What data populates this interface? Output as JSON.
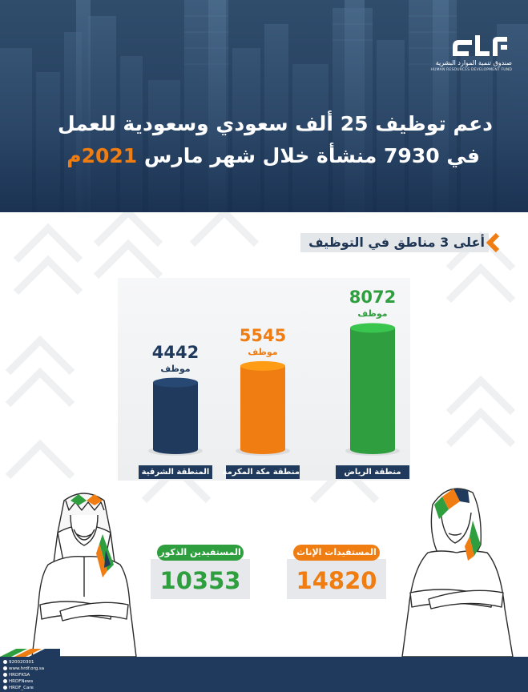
{
  "header": {
    "logo": {
      "mark_text": "هدف",
      "name": "صندوق تنمية الموارد البشرية",
      "subtitle": "HUMAN RESOURCES DEVELOPMENT FUND"
    },
    "title_line1": "دعم توظيف 25 ألف سعودي وسعودية للعمل",
    "title_line2_prefix": "في 7930 منشأة خلال شهر مارس ",
    "title_line2_highlight": "2021م"
  },
  "section": {
    "heading": "أعلى 3 مناطق في التوظيف"
  },
  "chart_data": {
    "type": "bar",
    "categories": [
      "منطقة الرياض",
      "منطقة مكة المكرمة",
      "المنطقة الشرقية"
    ],
    "values": [
      8072,
      5545,
      4442
    ],
    "unit": "موظف",
    "colors": [
      "#2e9e3e",
      "#ef7d12",
      "#1f3a5c"
    ],
    "ylim": [
      0,
      9000
    ]
  },
  "stats": {
    "males": {
      "label": "المستفيدين الذكور",
      "value": "10353",
      "color": "#2e9e3e"
    },
    "females": {
      "label": "المستفيدات الإناث",
      "value": "14820",
      "color": "#ef7d12"
    }
  },
  "footer": {
    "contacts": [
      {
        "icon": "whatsapp-icon",
        "text": "920020301"
      },
      {
        "icon": "globe-icon",
        "text": "www.hrdf.org.sa"
      },
      {
        "icon": "twitter-icon",
        "text": "HRDFKSA"
      },
      {
        "icon": "twitter-icon",
        "text": "HRDFNews"
      },
      {
        "icon": "twitter-icon",
        "text": "HRDF_Care"
      }
    ]
  },
  "colors": {
    "navy": "#1f3a5c",
    "orange": "#ef7d12",
    "green": "#2e9e3e"
  }
}
